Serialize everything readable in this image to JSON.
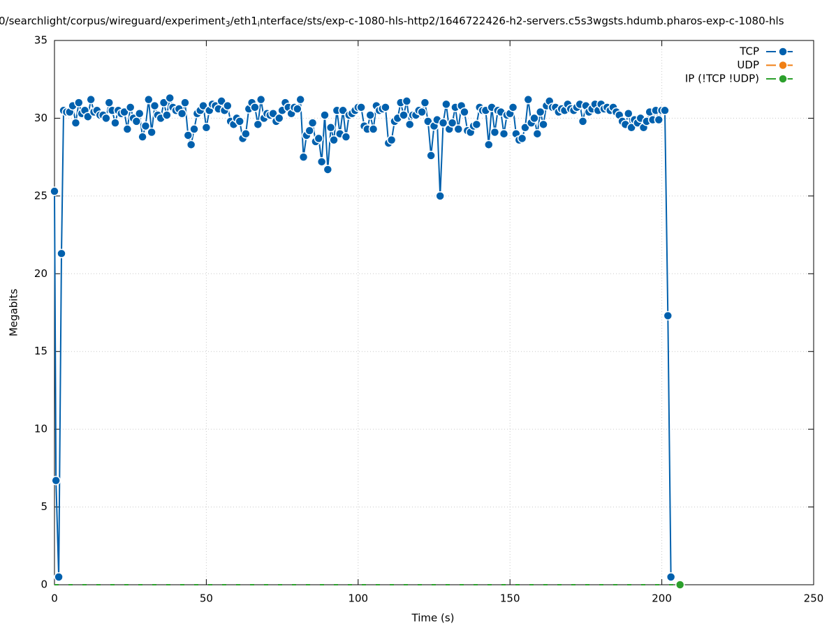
{
  "chart_data": {
    "type": "line",
    "title": [
      "0/searchlight/corpus/wireguard/experiment",
      "3",
      "/eth1",
      "i",
      "nterface/sts/exp-c-1080-hls-http2/1646722426-h2-servers.c5s3wgsts.hdumb.pharos-exp-c-1080-hls"
    ],
    "xlabel": "Time (s)",
    "ylabel": "Megabits",
    "xlim": [
      0,
      250
    ],
    "xticks": [
      0,
      50,
      100,
      150,
      200,
      250
    ],
    "ylim": [
      0,
      35
    ],
    "yticks": [
      0,
      5,
      10,
      15,
      20,
      25,
      30,
      35
    ],
    "grid": true,
    "legend": "top-right",
    "series": [
      {
        "name": "TCP",
        "color": "#0060ad",
        "x": [
          0,
          0.5,
          1.4,
          2.3,
          3,
          4,
          5,
          6,
          7,
          8,
          9,
          10,
          11,
          12,
          13,
          14,
          15,
          16,
          17,
          18,
          19,
          20,
          21,
          22,
          23,
          24,
          25,
          26,
          27,
          28,
          29,
          30,
          31,
          32,
          33,
          34,
          35,
          36,
          37,
          38,
          39,
          40,
          41,
          42,
          43,
          44,
          45,
          46,
          47,
          48,
          49,
          50,
          51,
          52,
          53,
          54,
          55,
          56,
          57,
          58,
          59,
          60,
          61,
          62,
          63,
          64,
          65,
          66,
          67,
          68,
          69,
          70,
          71,
          72,
          73,
          74,
          75,
          76,
          77,
          78,
          79,
          80,
          81,
          82,
          83,
          84,
          85,
          86,
          87,
          88,
          89,
          90,
          91,
          92,
          93,
          94,
          95,
          96,
          97,
          98,
          99,
          100,
          101,
          102,
          103,
          104,
          105,
          106,
          107,
          108,
          109,
          110,
          111,
          112,
          113,
          114,
          115,
          116,
          117,
          118,
          119,
          120,
          121,
          122,
          123,
          124,
          125,
          126,
          127,
          128,
          129,
          130,
          131,
          132,
          133,
          134,
          135,
          136,
          137,
          138,
          139,
          140,
          141,
          142,
          143,
          144,
          145,
          146,
          147,
          148,
          149,
          150,
          151,
          152,
          153,
          154,
          155,
          156,
          157,
          158,
          159,
          160,
          161,
          162,
          163,
          164,
          165,
          166,
          167,
          168,
          169,
          170,
          171,
          172,
          173,
          174,
          175,
          176,
          177,
          178,
          179,
          180,
          181,
          182,
          183,
          184,
          185,
          186,
          187,
          188,
          189,
          190,
          191,
          192,
          193,
          194,
          195,
          196,
          197,
          198,
          199,
          200,
          201,
          202,
          203
        ],
        "values": [
          25.3,
          6.7,
          0.5,
          21.3,
          30.5,
          30.4,
          30.4,
          30.8,
          29.7,
          31.0,
          30.3,
          30.5,
          30.1,
          31.2,
          30.4,
          30.5,
          30.2,
          30.2,
          30.0,
          31.0,
          30.5,
          29.7,
          30.5,
          30.3,
          30.4,
          29.3,
          30.7,
          30.0,
          29.8,
          30.3,
          28.8,
          29.5,
          31.2,
          29.1,
          30.8,
          30.2,
          30.0,
          31.0,
          30.2,
          31.3,
          30.7,
          30.5,
          30.6,
          30.3,
          31.0,
          28.9,
          28.3,
          29.3,
          30.3,
          30.5,
          30.8,
          29.4,
          30.5,
          30.9,
          30.8,
          30.6,
          31.1,
          30.5,
          30.8,
          29.8,
          29.6,
          30.0,
          29.8,
          28.7,
          29.0,
          30.6,
          31.0,
          30.7,
          29.6,
          31.2,
          30.0,
          30.3,
          30.2,
          30.3,
          29.8,
          30.0,
          30.5,
          31.0,
          30.7,
          30.3,
          30.7,
          30.6,
          31.2,
          27.5,
          28.9,
          29.2,
          29.7,
          28.5,
          28.7,
          27.2,
          30.2,
          26.7,
          29.4,
          28.6,
          30.5,
          29.0,
          30.5,
          28.8,
          30.2,
          30.3,
          30.5,
          30.7,
          30.7,
          29.5,
          29.3,
          30.2,
          29.3,
          30.8,
          30.5,
          30.6,
          30.7,
          28.4,
          28.6,
          29.8,
          30.0,
          31.0,
          30.2,
          31.1,
          29.6,
          30.2,
          30.2,
          30.5,
          30.4,
          31.0,
          29.8,
          27.6,
          29.5,
          29.9,
          25.0,
          29.7,
          30.9,
          29.3,
          29.7,
          30.7,
          29.3,
          30.8,
          30.4,
          29.2,
          29.1,
          29.5,
          29.6,
          30.7,
          30.5,
          30.5,
          28.3,
          30.7,
          29.1,
          30.5,
          30.4,
          29.0,
          30.2,
          30.3,
          30.7,
          29.0,
          28.6,
          28.7,
          29.4,
          31.2,
          29.7,
          30.0,
          29.0,
          30.4,
          29.6,
          30.8,
          31.1,
          30.7,
          30.7,
          30.4,
          30.6,
          30.5,
          30.9,
          30.6,
          30.5,
          30.7,
          30.9,
          29.8,
          30.8,
          30.4,
          30.6,
          30.9,
          30.5,
          30.9,
          30.6,
          30.7,
          30.5,
          30.7,
          30.4,
          30.2,
          29.8,
          29.6,
          30.3,
          29.4,
          29.9,
          29.7,
          30.0,
          29.4,
          29.8,
          30.4,
          29.9,
          30.5,
          29.9,
          30.5,
          30.5,
          17.3,
          0.5
        ]
      },
      {
        "name": "UDP",
        "color": "#f07f14",
        "x": [],
        "values": []
      },
      {
        "name": "IP (!TCP  !UDP)",
        "color": "#2ca02c",
        "x": [
          0,
          206
        ],
        "values": [
          0,
          0
        ]
      }
    ]
  }
}
